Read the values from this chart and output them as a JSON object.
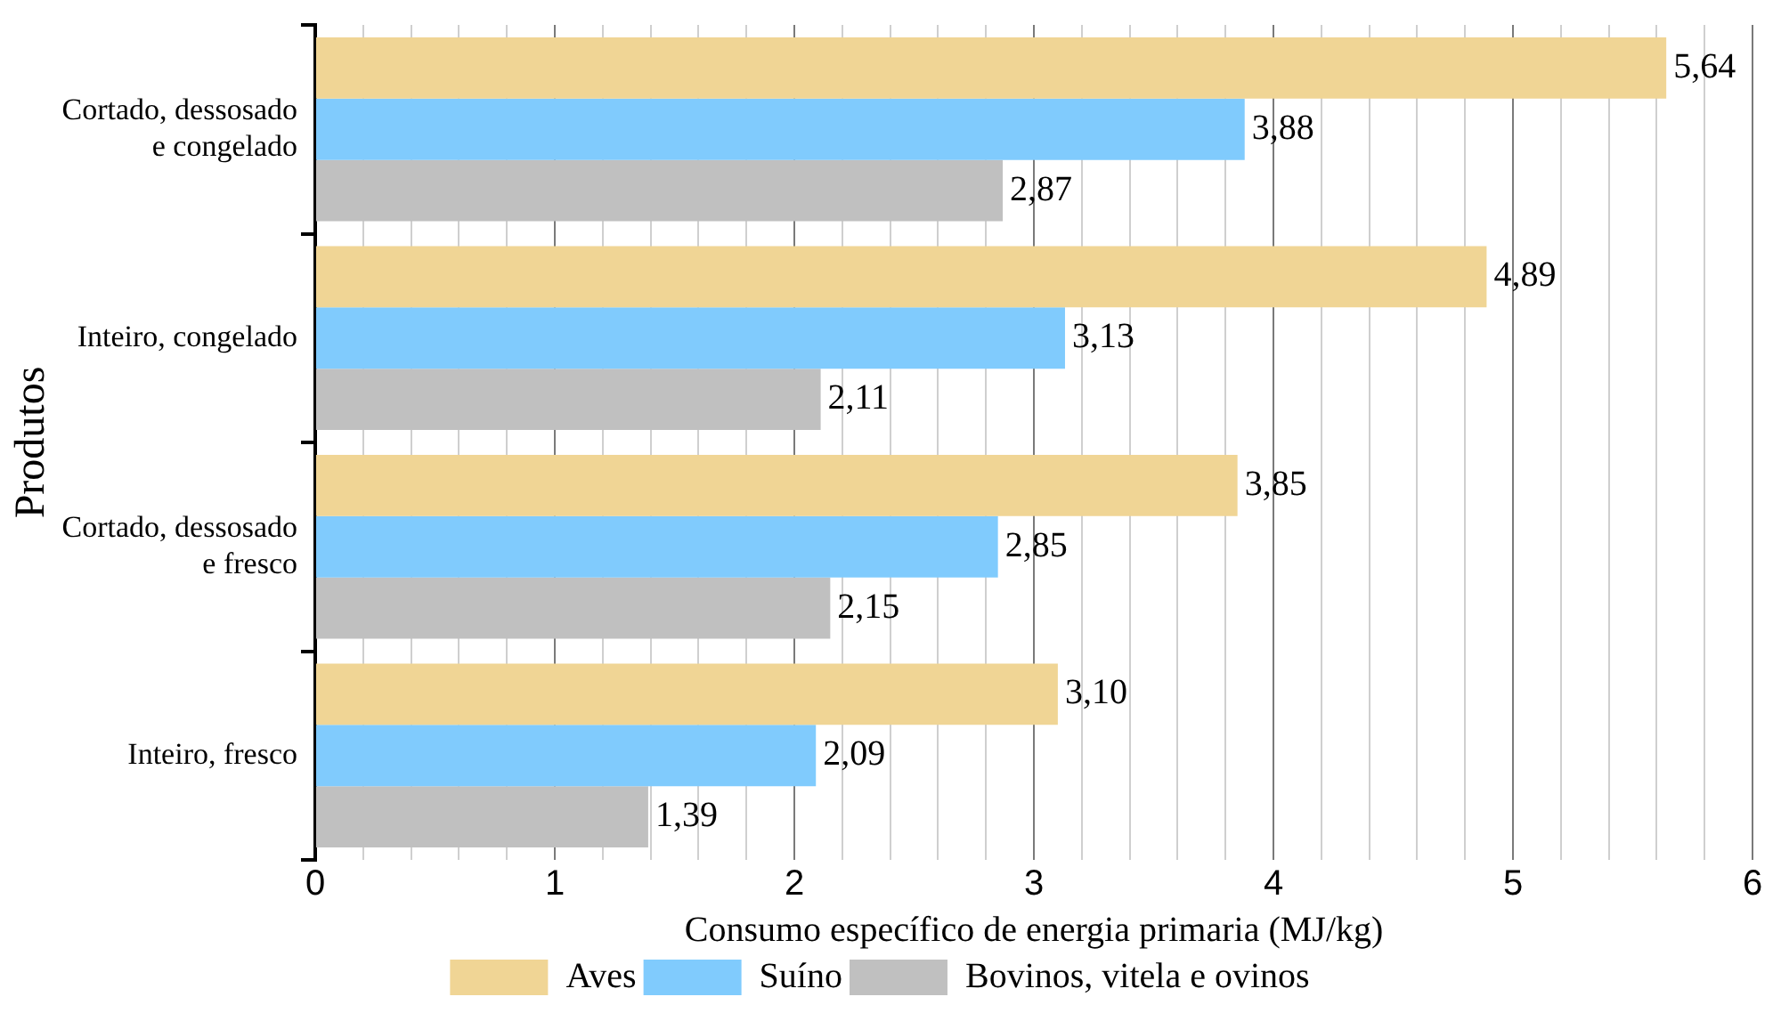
{
  "chart_data": {
    "type": "bar",
    "orientation": "horizontal",
    "xlabel": "Consumo específico de energia primaria (MJ/kg)",
    "ylabel": "Produtos",
    "categories": [
      "Cortado, dessosado\n e congelado",
      "Inteiro, congelado",
      "Cortado, dessosado\n e fresco",
      "Inteiro, fresco"
    ],
    "series": [
      {
        "name": "Aves",
        "color": "#f0d595",
        "values": [
          5.64,
          4.89,
          3.85,
          3.1
        ],
        "value_labels": [
          "5,64",
          "4,89",
          "3,85",
          "3,10"
        ]
      },
      {
        "name": "Suíno",
        "color": "#80cbfd",
        "values": [
          3.88,
          3.13,
          2.85,
          2.09
        ],
        "value_labels": [
          "3,88",
          "3,13",
          "2,85",
          "2,09"
        ]
      },
      {
        "name": "Bovinos, vitela e ovinos",
        "color": "#c0c0c0",
        "values": [
          2.87,
          2.11,
          2.15,
          1.39
        ],
        "value_labels": [
          "2,87",
          "2,11",
          "2,15",
          "1,39"
        ]
      }
    ],
    "xlim": [
      0,
      6
    ],
    "xticks": [
      0,
      {
        "value": 0.2,
        "label": null
      },
      {
        "value": 0.4,
        "label": null
      },
      {
        "value": 0.6,
        "label": null
      },
      {
        "value": 0.8,
        "label": null
      },
      1,
      {
        "value": 1.2,
        "label": null
      },
      {
        "value": 1.4,
        "label": null
      },
      {
        "value": 1.6,
        "label": null
      },
      {
        "value": 1.8,
        "label": null
      },
      2,
      {
        "value": 2.2,
        "label": null
      },
      {
        "value": 2.4,
        "label": null
      },
      {
        "value": 2.6,
        "label": null
      },
      {
        "value": 2.8,
        "label": null
      },
      3,
      {
        "value": 3.2,
        "label": null
      },
      {
        "value": 3.4,
        "label": null
      },
      {
        "value": 3.6,
        "label": null
      },
      {
        "value": 3.8,
        "label": null
      },
      4,
      {
        "value": 4.2,
        "label": null
      },
      {
        "value": 4.4,
        "label": null
      },
      {
        "value": 4.6,
        "label": null
      },
      {
        "value": 4.8,
        "label": null
      },
      5,
      {
        "value": 5.2,
        "label": null
      },
      {
        "value": 5.4,
        "label": null
      },
      {
        "value": 5.6,
        "label": null
      },
      {
        "value": 5.8,
        "label": null
      },
      6
    ],
    "grid": "x",
    "legend": "bottom"
  }
}
